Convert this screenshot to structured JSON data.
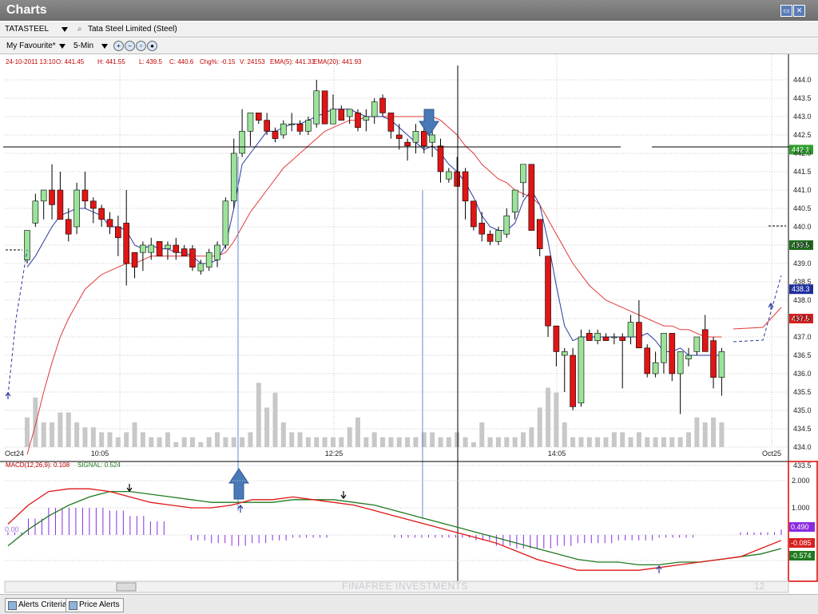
{
  "window": {
    "title": "Charts"
  },
  "toolbar1": {
    "symbol": "TATASTEEL",
    "company": "Tata Steel Limited  (Steel)"
  },
  "toolbar2": {
    "favourite": "My Favourite*",
    "interval": "5-Min"
  },
  "header": {
    "datetime": "24-10-2011 13:10",
    "open": "O: 441.45",
    "high": "H: 441.55",
    "low": "L: 439.5",
    "close": "C: 440.6",
    "change": "Chg%: -0.15",
    "volume": "V: 24153",
    "ema5": "EMA(5): 441.33",
    "ema20": "EMA(20): 441.93"
  },
  "macd_header": {
    "macd": "MACD(12,26,9): 0.108",
    "signal": "SIGNAL: 0.524"
  },
  "chart_data": {
    "type": "candlestick",
    "price_range": [
      433.5,
      444.0
    ],
    "price_ticks": [
      "444.0",
      "443.5",
      "443.0",
      "442.5",
      "442.0",
      "441.5",
      "441.0",
      "440.5",
      "440.0",
      "439.5",
      "439.0",
      "438.5",
      "438.0",
      "437.5",
      "437.0",
      "436.5",
      "436.0",
      "435.5",
      "435.0",
      "434.5",
      "434.0",
      "433.5"
    ],
    "x_labels": [
      "Oct24",
      "10:05",
      "12:25",
      "14:05",
      "Oct25"
    ],
    "price_markers": [
      {
        "label": "442.1",
        "price": 442.1,
        "color": "#2f9e2f"
      },
      {
        "label": "439.5",
        "price": 439.5,
        "color": "#1f6a1f"
      },
      {
        "label": "438.3",
        "price": 438.3,
        "color": "#1f2f9e"
      },
      {
        "label": "437.5",
        "price": 437.5,
        "color": "#d62020"
      }
    ],
    "candles": [
      [
        439.1,
        439.9,
        439.0,
        439.9
      ],
      [
        440.1,
        440.9,
        440.0,
        440.7
      ],
      [
        440.7,
        441.0,
        440.2,
        441.0
      ],
      [
        441.0,
        441.7,
        440.2,
        440.6
      ],
      [
        441.0,
        441.5,
        440.2,
        440.2
      ],
      [
        440.2,
        440.5,
        439.6,
        439.8
      ],
      [
        440.0,
        441.2,
        439.8,
        441.0
      ],
      [
        441.0,
        441.5,
        440.5,
        440.7
      ],
      [
        440.7,
        440.8,
        440.1,
        440.5
      ],
      [
        440.5,
        440.6,
        440.0,
        440.2
      ],
      [
        440.2,
        440.4,
        439.8,
        440.0
      ],
      [
        440.0,
        440.3,
        439.2,
        439.7
      ],
      [
        440.1,
        441.0,
        438.4,
        439.0
      ],
      [
        439.3,
        439.3,
        438.6,
        438.9
      ],
      [
        439.3,
        439.6,
        438.8,
        439.5
      ],
      [
        439.3,
        439.7,
        439.1,
        439.5
      ],
      [
        439.6,
        439.6,
        439.2,
        439.2
      ],
      [
        439.4,
        439.6,
        439.1,
        439.5
      ],
      [
        439.5,
        439.7,
        439.1,
        439.3
      ],
      [
        439.4,
        439.5,
        439.2,
        439.2
      ],
      [
        439.4,
        439.5,
        438.8,
        438.9
      ],
      [
        438.8,
        439.1,
        438.7,
        439.0
      ],
      [
        438.9,
        439.4,
        438.8,
        439.3
      ],
      [
        439.1,
        439.6,
        438.9,
        439.5
      ],
      [
        439.5,
        440.8,
        439.4,
        440.7
      ],
      [
        440.7,
        442.4,
        440.5,
        442.0
      ],
      [
        442.0,
        443.2,
        441.9,
        442.6
      ],
      [
        442.6,
        443.1,
        442.2,
        443.1
      ],
      [
        443.1,
        443.1,
        442.8,
        442.9
      ],
      [
        442.9,
        443.1,
        442.5,
        442.6
      ],
      [
        442.6,
        442.7,
        442.3,
        442.4
      ],
      [
        442.5,
        442.9,
        442.4,
        442.8
      ],
      [
        442.8,
        443.1,
        442.6,
        442.8
      ],
      [
        442.8,
        442.9,
        442.5,
        442.6
      ],
      [
        442.6,
        443.0,
        442.5,
        442.9
      ],
      [
        442.8,
        444.0,
        442.7,
        443.7
      ],
      [
        443.7,
        443.7,
        442.8,
        442.8
      ],
      [
        442.8,
        443.6,
        442.8,
        443.2
      ],
      [
        443.2,
        443.3,
        442.9,
        442.9
      ],
      [
        443.0,
        443.2,
        442.8,
        443.2
      ],
      [
        443.1,
        443.2,
        442.6,
        442.7
      ],
      [
        442.9,
        443.2,
        442.6,
        443.0
      ],
      [
        443.0,
        443.5,
        442.8,
        443.4
      ],
      [
        443.5,
        443.6,
        443.0,
        443.1
      ],
      [
        443.1,
        443.1,
        442.4,
        442.6
      ],
      [
        442.5,
        442.8,
        442.1,
        442.4
      ],
      [
        442.3,
        442.4,
        441.8,
        442.2
      ],
      [
        442.3,
        442.8,
        442.0,
        442.6
      ],
      [
        442.6,
        442.9,
        442.0,
        442.2
      ],
      [
        442.3,
        442.8,
        441.9,
        442.5
      ],
      [
        442.2,
        442.4,
        441.2,
        441.5
      ],
      [
        441.3,
        441.6,
        441.2,
        441.5
      ],
      [
        441.5,
        441.9,
        441.1,
        441.1
      ],
      [
        441.5,
        441.6,
        440.2,
        440.7
      ],
      [
        440.7,
        440.7,
        439.9,
        440.0
      ],
      [
        440.1,
        440.4,
        439.6,
        439.8
      ],
      [
        439.8,
        439.9,
        439.5,
        439.6
      ],
      [
        439.6,
        440.0,
        439.5,
        439.9
      ],
      [
        439.8,
        440.5,
        439.7,
        440.3
      ],
      [
        440.4,
        441.0,
        440.2,
        441.0
      ],
      [
        441.2,
        441.7,
        440.8,
        441.7
      ],
      [
        441.7,
        441.7,
        439.9,
        439.9
      ],
      [
        440.2,
        440.2,
        439.2,
        439.4
      ],
      [
        439.2,
        439.2,
        437.0,
        437.3
      ],
      [
        437.3,
        437.3,
        436.2,
        436.6
      ],
      [
        436.5,
        436.7,
        435.5,
        436.6
      ],
      [
        436.5,
        436.7,
        435.0,
        435.1
      ],
      [
        435.2,
        437.2,
        435.1,
        437.0
      ],
      [
        437.1,
        437.2,
        436.9,
        436.9
      ],
      [
        436.9,
        437.2,
        436.8,
        437.1
      ],
      [
        437.0,
        437.1,
        436.9,
        436.9
      ],
      [
        437.0,
        437.1,
        436.8,
        437.0
      ],
      [
        437.0,
        437.1,
        435.6,
        436.9
      ],
      [
        437.0,
        437.6,
        436.8,
        437.4
      ],
      [
        437.4,
        438.0,
        436.7,
        436.7
      ],
      [
        436.7,
        436.8,
        435.9,
        436.0
      ],
      [
        436.0,
        436.6,
        435.9,
        436.3
      ],
      [
        436.3,
        437.1,
        436.0,
        437.1
      ],
      [
        437.1,
        437.1,
        435.8,
        436.0
      ],
      [
        436.0,
        436.6,
        434.9,
        436.6
      ],
      [
        436.4,
        436.7,
        436.2,
        436.5
      ],
      [
        436.6,
        437.0,
        436.5,
        437.0
      ],
      [
        437.2,
        437.6,
        436.6,
        436.6
      ],
      [
        436.9,
        437.0,
        435.6,
        435.9
      ],
      [
        435.9,
        436.7,
        435.4,
        436.6
      ]
    ],
    "volume": [
      6,
      10,
      5,
      5,
      7,
      7,
      5,
      4,
      4,
      3,
      3,
      2,
      3,
      5,
      3,
      2,
      2,
      3,
      1,
      2,
      2,
      1,
      2,
      3,
      2,
      2,
      2,
      3,
      13,
      8,
      11,
      5,
      3,
      3,
      2,
      2,
      2,
      2,
      2,
      4,
      6,
      2,
      3,
      2,
      2,
      2,
      2,
      2,
      3,
      3,
      2,
      2,
      3,
      2,
      1,
      5,
      2,
      2,
      2,
      2,
      3,
      4,
      8,
      12,
      11,
      5,
      2,
      2,
      2,
      2,
      2,
      3,
      3,
      2,
      3,
      2,
      2,
      2,
      2,
      2,
      3,
      6,
      5,
      6,
      5
    ],
    "ema5": [
      438.9,
      439.2,
      439.6,
      440.0,
      440.3,
      440.4,
      440.5,
      440.5,
      440.4,
      440.3,
      440.0,
      440.0,
      439.9,
      439.5,
      439.4,
      439.5,
      439.4,
      439.4,
      439.3,
      439.3,
      439.2,
      439.0,
      439.0,
      439.1,
      439.5,
      440.5,
      441.7,
      442.0,
      442.3,
      442.6,
      442.6,
      442.7,
      442.8,
      442.8,
      442.9,
      443.0,
      443.1,
      443.2,
      443.2,
      443.2,
      443.1,
      443.0,
      443.0,
      443.0,
      442.9,
      442.7,
      442.5,
      442.3,
      442.1,
      442.2,
      442.0,
      441.7,
      441.5,
      441.2,
      440.8,
      440.3,
      440.0,
      439.9,
      439.9,
      440.1,
      440.7,
      441.0,
      440.6,
      439.6,
      438.4,
      437.3,
      436.9,
      437.0,
      437.0,
      437.0,
      437.0,
      437.0,
      437.0,
      437.0,
      437.0,
      437.1,
      436.9,
      436.6,
      436.6,
      436.7,
      436.5,
      436.5,
      436.5,
      436.5,
      436.5
    ],
    "ema20": [
      433.8,
      434.6,
      435.5,
      436.3,
      437.0,
      437.5,
      437.9,
      438.3,
      438.5,
      438.7,
      438.8,
      438.9,
      439.0,
      439.0,
      439.1,
      439.2,
      439.2,
      439.2,
      439.2,
      439.2,
      439.2,
      439.2,
      439.2,
      439.2,
      439.3,
      439.6,
      440.0,
      440.4,
      440.7,
      441.0,
      441.3,
      441.6,
      441.8,
      442.0,
      442.2,
      442.4,
      442.6,
      442.7,
      442.8,
      442.9,
      442.9,
      443.0,
      443.0,
      443.0,
      443.0,
      443.0,
      443.0,
      443.0,
      443.0,
      443.0,
      442.9,
      442.7,
      442.5,
      442.2,
      442.0,
      441.7,
      441.5,
      441.3,
      441.2,
      441.0,
      440.9,
      440.8,
      440.6,
      440.2,
      439.8,
      439.4,
      439.0,
      438.7,
      438.4,
      438.2,
      438.0,
      437.9,
      437.8,
      437.7,
      437.6,
      437.5,
      437.4,
      437.3,
      437.3,
      437.2,
      437.2,
      437.1,
      437.0,
      437.0,
      437.0
    ],
    "macd_ticks": [
      "2.000",
      "1.000",
      "0.00"
    ],
    "macd_markers": [
      {
        "label": "0.490",
        "value": 0.49,
        "color": "#8a2be2"
      },
      {
        "label": "-0.085",
        "value": -0.085,
        "color": "#d62020"
      },
      {
        "label": "-0.574",
        "value": -0.574,
        "color": "#1f7a1f"
      }
    ],
    "macd_line": [
      0.4,
      1.1,
      1.6,
      1.7,
      1.7,
      1.6,
      1.4,
      1.2,
      1.1,
      1.0,
      1.0,
      1.1,
      1.3,
      1.3,
      1.4,
      1.3,
      1.2,
      1.1,
      0.9,
      0.7,
      0.5,
      0.3,
      0.1,
      -0.1,
      -0.3,
      -0.6,
      -0.9,
      -1.1,
      -1.3,
      -1.3,
      -1.3,
      -1.3,
      -1.2,
      -1.1,
      -1.0,
      -0.9,
      -0.8,
      -0.5,
      -0.2
    ],
    "signal_line": [
      -0.4,
      0.2,
      0.7,
      1.1,
      1.4,
      1.6,
      1.6,
      1.5,
      1.4,
      1.3,
      1.2,
      1.2,
      1.2,
      1.2,
      1.3,
      1.3,
      1.3,
      1.2,
      1.1,
      0.9,
      0.7,
      0.5,
      0.3,
      0.1,
      -0.1,
      -0.3,
      -0.5,
      -0.7,
      -0.9,
      -1.0,
      -1.0,
      -1.1,
      -1.1,
      -1.0,
      -1.0,
      -0.9,
      -0.8,
      -0.7,
      -0.5
    ],
    "macd_hist": [
      0.1,
      0.6,
      1.0,
      1.0,
      1.0,
      0.9,
      0.7,
      0.5,
      0.0,
      -0.2,
      -0.3,
      -0.4,
      -0.3,
      -0.2,
      -0.1,
      -0.1,
      0.0,
      0.0,
      0.0,
      -0.1,
      -0.1,
      -0.1,
      -0.1,
      -0.2,
      -0.4,
      -0.5,
      -0.5,
      -0.4,
      -0.3,
      -0.3,
      -0.2,
      -0.2,
      -0.1,
      -0.1,
      0.0,
      0.0,
      0.1,
      0.1,
      0.2
    ]
  },
  "bottom": {
    "tab1": "Alerts Criteria",
    "tab2": "Price Alerts",
    "watermark": "FINAFREE INVESTMENTS",
    "page": "12"
  }
}
